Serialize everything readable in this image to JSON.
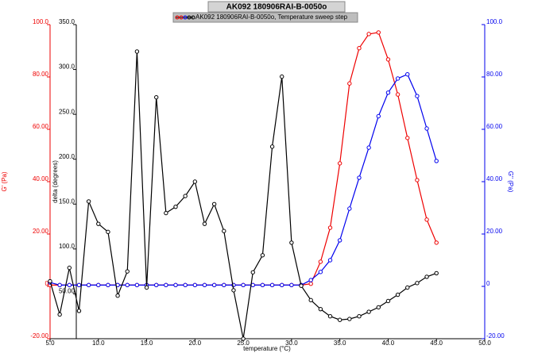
{
  "chart_data": {
    "type": "line",
    "title": "AK092 180906RAI-B-0050o",
    "legend_title": "AK092 180906RAI-B-0050o, Temperature sweep step",
    "x_label": "temperature (°C)",
    "y_label": "G' (Pa)",
    "y2_label": "G'' (Pa)",
    "y3_label": "delta (degrees)",
    "x": [
      5,
      6,
      7,
      8,
      9,
      10,
      11,
      12,
      13,
      14,
      15,
      16,
      17,
      18,
      19,
      20,
      21,
      22,
      23,
      24,
      25,
      26,
      27,
      28,
      29,
      30,
      31,
      32,
      33,
      34,
      35,
      36,
      37,
      38,
      39,
      40,
      41,
      42,
      43,
      44,
      45
    ],
    "xlim": [
      5,
      50
    ],
    "xticks": [
      {
        "value": 5,
        "label": "5.0"
      },
      {
        "value": 10,
        "label": "10.0"
      },
      {
        "value": 15,
        "label": "15.0"
      },
      {
        "value": 20,
        "label": "20.0"
      },
      {
        "value": 25,
        "label": "25.0"
      },
      {
        "value": 30,
        "label": "30.0"
      },
      {
        "value": 35,
        "label": "35.0"
      },
      {
        "value": 40,
        "label": "40.0"
      },
      {
        "value": 45,
        "label": "45.0"
      },
      {
        "value": 50,
        "label": "50.0"
      }
    ],
    "ylim": [
      -20,
      100
    ],
    "yticks": [
      {
        "value": -20,
        "label": "-20.00"
      },
      0,
      {
        "value": 20,
        "label": "20.00"
      },
      {
        "value": 40,
        "label": "40.00"
      },
      {
        "value": 60,
        "label": "60.00"
      },
      {
        "value": 80,
        "label": "80.00"
      },
      {
        "value": 100,
        "label": "100.0"
      }
    ],
    "y2lim": [
      -20,
      100
    ],
    "y2ticks": [
      {
        "value": -20,
        "label": "-20.00"
      },
      0,
      {
        "value": 20,
        "label": "20.00"
      },
      {
        "value": 40,
        "label": "40.00"
      },
      {
        "value": 60,
        "label": "60.00"
      },
      {
        "value": 80,
        "label": "80.00"
      },
      {
        "value": 100,
        "label": "100.0"
      }
    ],
    "y3lim": [
      0,
      350
    ],
    "y3ticks": [
      {
        "value": 50,
        "label": "50.00"
      },
      {
        "value": 100,
        "label": "100.0"
      },
      {
        "value": 150,
        "label": "150.0"
      },
      {
        "value": 200,
        "label": "200.0"
      },
      {
        "value": 250,
        "label": "250.0"
      },
      {
        "value": 300,
        "label": "300.0"
      },
      {
        "value": 350,
        "label": "350.0"
      }
    ],
    "series": [
      {
        "name": "G'",
        "color": "#ee0000",
        "axis": "y",
        "values": [
          0.5,
          0.5,
          0.5,
          0.5,
          0.5,
          0.5,
          0.5,
          0.5,
          0.5,
          0.5,
          0.5,
          0.5,
          0.5,
          0.5,
          0.5,
          0.5,
          0.5,
          0.5,
          0.5,
          0.5,
          0.5,
          0.5,
          0.5,
          0.5,
          0.5,
          0.5,
          0.5,
          1,
          9.4,
          22.4,
          47,
          77.5,
          91,
          96.4,
          97,
          86.7,
          73.3,
          56.7,
          40.6,
          25.5,
          16.7
        ]
      },
      {
        "name": "G''",
        "color": "#0000ee",
        "axis": "y2",
        "values": [
          1.5,
          0.5,
          0.5,
          0.5,
          0.5,
          0.5,
          0.5,
          0.5,
          0.5,
          0.5,
          0.5,
          0.5,
          0.5,
          0.5,
          0.5,
          0.5,
          0.5,
          0.5,
          0.5,
          0.5,
          0.5,
          0.5,
          0.5,
          0.5,
          0.5,
          0.5,
          0.5,
          2.4,
          5.5,
          10,
          17.6,
          29.7,
          41.5,
          53,
          65,
          74,
          79.4,
          81,
          72.7,
          60.3,
          47.9
        ]
      },
      {
        "name": "delta",
        "color": "#000000",
        "axis": "y3",
        "values": [
          64,
          27,
          79,
          31,
          153,
          128,
          119,
          48,
          75,
          320,
          57,
          269,
          140,
          147,
          159,
          175,
          128,
          150,
          120,
          54,
          0,
          74,
          93,
          214,
          292,
          107,
          59,
          43,
          33,
          25,
          21,
          22,
          25,
          30,
          35,
          42,
          49,
          57,
          62,
          69,
          73
        ]
      }
    ]
  }
}
